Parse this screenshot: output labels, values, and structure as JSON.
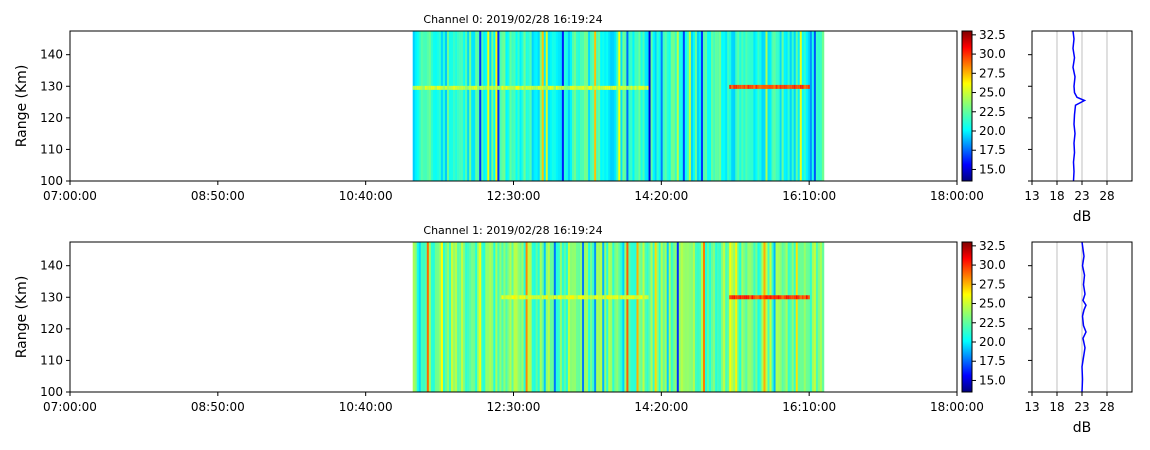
{
  "chart_data": [
    {
      "type": "heatmap",
      "title": "Channel 0: 2019/02/28 16:19:24",
      "ylabel": "Range (Km)",
      "xlabel": "",
      "x_range": [
        "07:00:00",
        "18:00:00"
      ],
      "x_ticks": [
        "07:00:00",
        "08:50:00",
        "10:40:00",
        "12:30:00",
        "14:20:00",
        "16:10:00",
        "18:00:00"
      ],
      "ylim": [
        100,
        147.5
      ],
      "y_ticks": [
        100,
        110,
        120,
        130,
        140
      ],
      "data_time_range": [
        "11:15:00",
        "16:20:00"
      ],
      "colormap": "jet",
      "colorbar": {
        "range": [
          13.5,
          33.0
        ],
        "ticks": [
          "15.0",
          "17.5",
          "20.0",
          "22.5",
          "25.0",
          "27.5",
          "30.0",
          "32.5"
        ]
      },
      "features": [
        {
          "label": "background",
          "value": 21.5
        },
        {
          "label": "echo band",
          "range_km": 129.5,
          "start": "11:15:00",
          "end": "14:10:00",
          "value": 24.5
        },
        {
          "label": "echo band",
          "range_km": 129.8,
          "start": "15:10:00",
          "end": "16:10:00",
          "value": 29.0
        }
      ],
      "profile": {
        "xlabel": "dB",
        "x_ticks": [
          13,
          18,
          23,
          28
        ],
        "xlim": [
          13,
          33
        ],
        "ylim": [
          100,
          147.5
        ],
        "grid": true,
        "points": [
          [
            21.3,
            100
          ],
          [
            21.4,
            103
          ],
          [
            21.3,
            106
          ],
          [
            21.5,
            109
          ],
          [
            21.4,
            112
          ],
          [
            21.6,
            115
          ],
          [
            21.4,
            118
          ],
          [
            21.5,
            121
          ],
          [
            21.7,
            124
          ],
          [
            23.5,
            125.5
          ],
          [
            22.0,
            126.5
          ],
          [
            21.5,
            128
          ],
          [
            21.4,
            130
          ],
          [
            21.6,
            133
          ],
          [
            21.2,
            136
          ],
          [
            21.5,
            139
          ],
          [
            21.2,
            142
          ],
          [
            21.4,
            145
          ],
          [
            21.2,
            147.5
          ]
        ]
      }
    },
    {
      "type": "heatmap",
      "title": "Channel 1: 2019/02/28 16:19:24",
      "ylabel": "Range (Km)",
      "xlabel": "",
      "x_range": [
        "07:00:00",
        "18:00:00"
      ],
      "x_ticks": [
        "07:00:00",
        "08:50:00",
        "10:40:00",
        "12:30:00",
        "14:20:00",
        "16:10:00",
        "18:00:00"
      ],
      "ylim": [
        100,
        147.5
      ],
      "y_ticks": [
        100,
        110,
        120,
        130,
        140
      ],
      "data_time_range": [
        "11:15:00",
        "16:20:00"
      ],
      "colormap": "jet",
      "colorbar": {
        "range": [
          13.5,
          33.0
        ],
        "ticks": [
          "15.0",
          "17.5",
          "20.0",
          "22.5",
          "25.0",
          "27.5",
          "30.0",
          "32.5"
        ]
      },
      "features": [
        {
          "label": "background",
          "value": 23.0
        },
        {
          "label": "echo band",
          "range_km": 130,
          "start": "12:20:00",
          "end": "14:10:00",
          "value": 25.0
        },
        {
          "label": "echo band",
          "range_km": 130,
          "start": "15:10:00",
          "end": "16:10:00",
          "value": 29.5
        }
      ],
      "profile": {
        "xlabel": "dB",
        "x_ticks": [
          13,
          18,
          23,
          28
        ],
        "xlim": [
          13,
          33
        ],
        "ylim": [
          100,
          147.5
        ],
        "grid": true,
        "points": [
          [
            23.0,
            100
          ],
          [
            23.1,
            104
          ],
          [
            23.0,
            108
          ],
          [
            23.3,
            111
          ],
          [
            23.6,
            114
          ],
          [
            23.2,
            117
          ],
          [
            23.8,
            119
          ],
          [
            23.3,
            121
          ],
          [
            23.1,
            124
          ],
          [
            23.4,
            126
          ],
          [
            23.8,
            127.5
          ],
          [
            23.2,
            129
          ],
          [
            23.6,
            131
          ],
          [
            23.3,
            134
          ],
          [
            23.5,
            137
          ],
          [
            23.1,
            140
          ],
          [
            23.4,
            143
          ],
          [
            23.0,
            147.5
          ]
        ]
      }
    }
  ]
}
